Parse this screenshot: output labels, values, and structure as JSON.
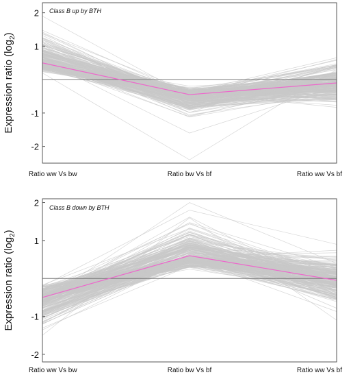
{
  "chart_data": [
    {
      "type": "line",
      "title": "Class B up by BTH",
      "ylabel_main": "Expression ratio (log",
      "ylabel_sub": "2",
      "ylabel_close": ")",
      "categories": [
        "Ratio ww Vs bw",
        "Ratio bw Vs bf",
        "Ratio ww Vs bf"
      ],
      "yticks": [
        2,
        1,
        -1,
        -2
      ],
      "ytick_labels": [
        "2",
        "1",
        "-1",
        "-2"
      ],
      "ylim": [
        -2.5,
        2.3
      ],
      "baseline": 0,
      "colors": {
        "profiles": "#c8c8c8",
        "mean": "#ee66cc",
        "baseline": "#777777",
        "frame": "#555555"
      },
      "profile_count": 260,
      "profile_spread": {
        "start": [
          0.1,
          2.0
        ],
        "middle": [
          -1.5,
          -0.1
        ],
        "end": [
          -1.1,
          1.0
        ]
      },
      "outliers": [
        [
          1.9,
          -0.5,
          0.6
        ],
        [
          0.2,
          -2.4,
          0.3
        ],
        [
          0.6,
          -1.6,
          -0.2
        ]
      ],
      "series": [
        {
          "name": "mean",
          "values": [
            0.5,
            -0.45,
            -0.1
          ]
        }
      ]
    },
    {
      "type": "line",
      "title": "Class B down by BTH",
      "ylabel_main": "Expression ratio (log",
      "ylabel_sub": "2",
      "ylabel_close": ")",
      "categories": [
        "Ratio ww Vs bw",
        "Ratio bw Vs bf",
        "Ratio ww Vs bf"
      ],
      "yticks": [
        2,
        1,
        -1,
        -2
      ],
      "ytick_labels": [
        "2",
        "1",
        "-1",
        "-2"
      ],
      "ylim": [
        -2.2,
        2.1
      ],
      "baseline": 0,
      "colors": {
        "profiles": "#c8c8c8",
        "mean": "#ee66cc",
        "baseline": "#777777",
        "frame": "#555555"
      },
      "profile_count": 260,
      "profile_spread": {
        "start": [
          -1.7,
          0.05
        ],
        "middle": [
          0.05,
          2.0
        ],
        "end": [
          -1.2,
          1.0
        ]
      },
      "outliers": [
        [
          -0.6,
          2.0,
          0.4
        ],
        [
          -1.5,
          1.6,
          -1.1
        ],
        [
          -0.2,
          1.8,
          0.9
        ]
      ],
      "series": [
        {
          "name": "mean",
          "values": [
            -0.5,
            0.6,
            -0.05
          ]
        }
      ]
    }
  ]
}
